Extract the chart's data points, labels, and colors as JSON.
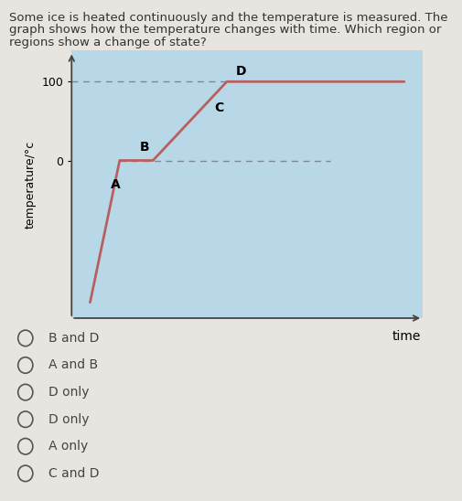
{
  "question_text_line1": "Some ice is heated continuously and the temperature is measured. The",
  "question_text_line2": "graph shows how the temperature changes with time. Which region or",
  "question_text_line3": "regions show a change of state?",
  "plot_bg_color": "#b8d8e8",
  "line_color": "#b86060",
  "dashed_color": "#7a8a95",
  "x_points": [
    0.5,
    1.3,
    2.2,
    4.2,
    5.3,
    9.0
  ],
  "y_points": [
    -1.8,
    0.0,
    0.0,
    1.0,
    1.0,
    1.0
  ],
  "y_label": "temperature/°c",
  "x_label": "time",
  "y_tick_val": [
    "0",
    "100"
  ],
  "y_tick_pos": [
    0.0,
    1.0
  ],
  "label_A": [
    1.05,
    -0.35
  ],
  "label_B": [
    1.85,
    0.12
  ],
  "label_C": [
    3.85,
    0.62
  ],
  "label_D": [
    4.45,
    1.08
  ],
  "options": [
    "B and D",
    "A and B",
    "D only",
    "D only",
    "A only",
    "C and D"
  ],
  "option_fontsize": 10,
  "question_fontsize": 9.5,
  "axis_color": "#444444",
  "outer_bg": "#e8e4e0",
  "label_fontsize": 9,
  "tick_fontsize": 9
}
